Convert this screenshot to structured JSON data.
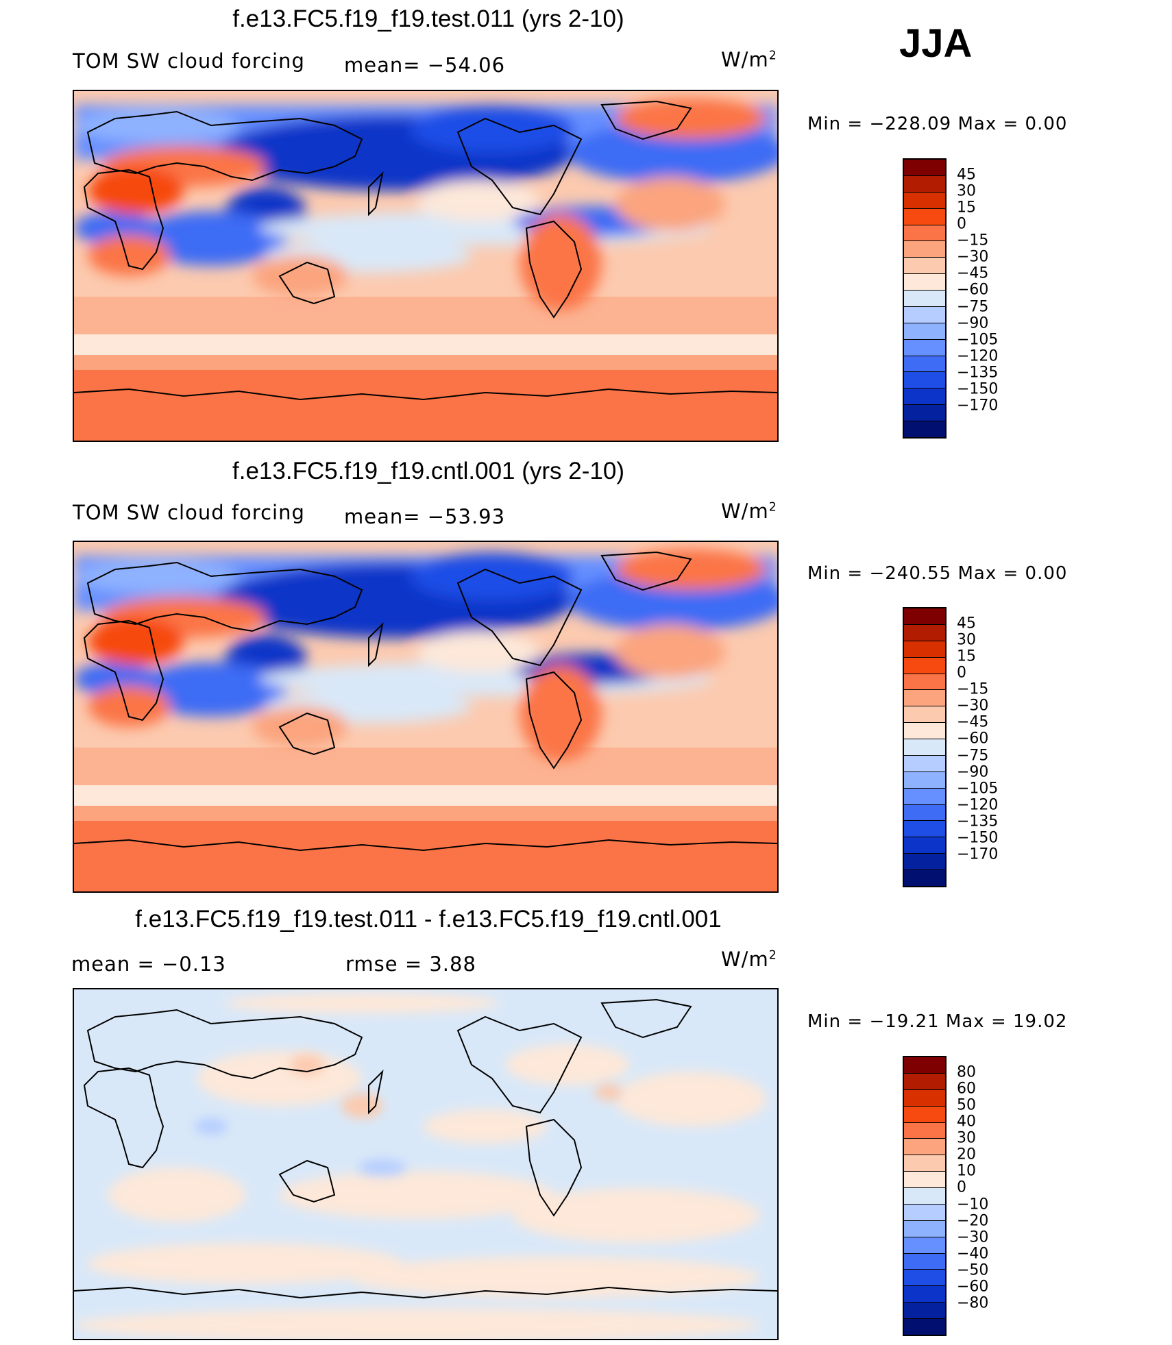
{
  "season": "JJA",
  "panels": [
    {
      "title": "f.e13.FC5.f19_f19.test.011 (yrs 2-10)",
      "left_label": "TOM SW cloud forcing",
      "center_label": "mean= −54.06",
      "units": "W/m",
      "units_sup": "2",
      "min_max": "Min  =  −228.09  Max  =      0.00",
      "colorbar": {
        "colors": [
          "#7f0000",
          "#b21c00",
          "#d93000",
          "#f64a10",
          "#fb7447",
          "#fba47e",
          "#fccaaf",
          "#fde8d9",
          "#d9e8f8",
          "#b6ceff",
          "#8fb2ff",
          "#6690ff",
          "#3e6cf5",
          "#1f4ee6",
          "#0c34c8",
          "#04219f",
          "#000f70"
        ],
        "labels": [
          "45",
          "30",
          "15",
          "0",
          "−15",
          "−30",
          "−45",
          "−60",
          "−75",
          "−90",
          "−105",
          "−120",
          "−135",
          "−150",
          "−170"
        ]
      }
    },
    {
      "title": "f.e13.FC5.f19_f19.cntl.001 (yrs 2-10)",
      "left_label": "TOM SW cloud forcing",
      "center_label": "mean= −53.93",
      "units": "W/m",
      "units_sup": "2",
      "min_max": "Min  =  −240.55  Max  =      0.00",
      "colorbar": {
        "colors": [
          "#7f0000",
          "#b21c00",
          "#d93000",
          "#f64a10",
          "#fb7447",
          "#fba47e",
          "#fccaaf",
          "#fde8d9",
          "#d9e8f8",
          "#b6ceff",
          "#8fb2ff",
          "#6690ff",
          "#3e6cf5",
          "#1f4ee6",
          "#0c34c8",
          "#04219f",
          "#000f70"
        ],
        "labels": [
          "45",
          "30",
          "15",
          "0",
          "−15",
          "−30",
          "−45",
          "−60",
          "−75",
          "−90",
          "−105",
          "−120",
          "−135",
          "−150",
          "−170"
        ]
      }
    },
    {
      "title": "f.e13.FC5.f19_f19.test.011 - f.e13.FC5.f19_f19.cntl.001",
      "left_label": "mean  =    −0.13",
      "center_label": "rmse  =     3.88",
      "units": "W/m",
      "units_sup": "2",
      "min_max": "Min  =  −19.21  Max  =    19.02",
      "colorbar": {
        "colors": [
          "#7f0000",
          "#b21c00",
          "#d93000",
          "#f64a10",
          "#fb7447",
          "#fba47e",
          "#fccaaf",
          "#fde8d9",
          "#d9e8f8",
          "#b6ceff",
          "#8fb2ff",
          "#6690ff",
          "#3e6cf5",
          "#1f4ee6",
          "#0c34c8",
          "#04219f",
          "#000f70"
        ],
        "labels": [
          "80",
          "60",
          "50",
          "40",
          "30",
          "20",
          "10",
          "0",
          "−10",
          "−20",
          "−30",
          "−40",
          "−50",
          "−60",
          "−80"
        ]
      }
    }
  ],
  "colors": {
    "polar": "#fb7447",
    "subtropic": "#fba47e",
    "trade": "#fccaaf",
    "pale": "#fde8d9",
    "light_blue": "#d9e8f8",
    "mid_blue": "#8fb2ff",
    "blue": "#3e6cf5",
    "deep_blue": "#0c34c8",
    "coast": "#000000"
  }
}
